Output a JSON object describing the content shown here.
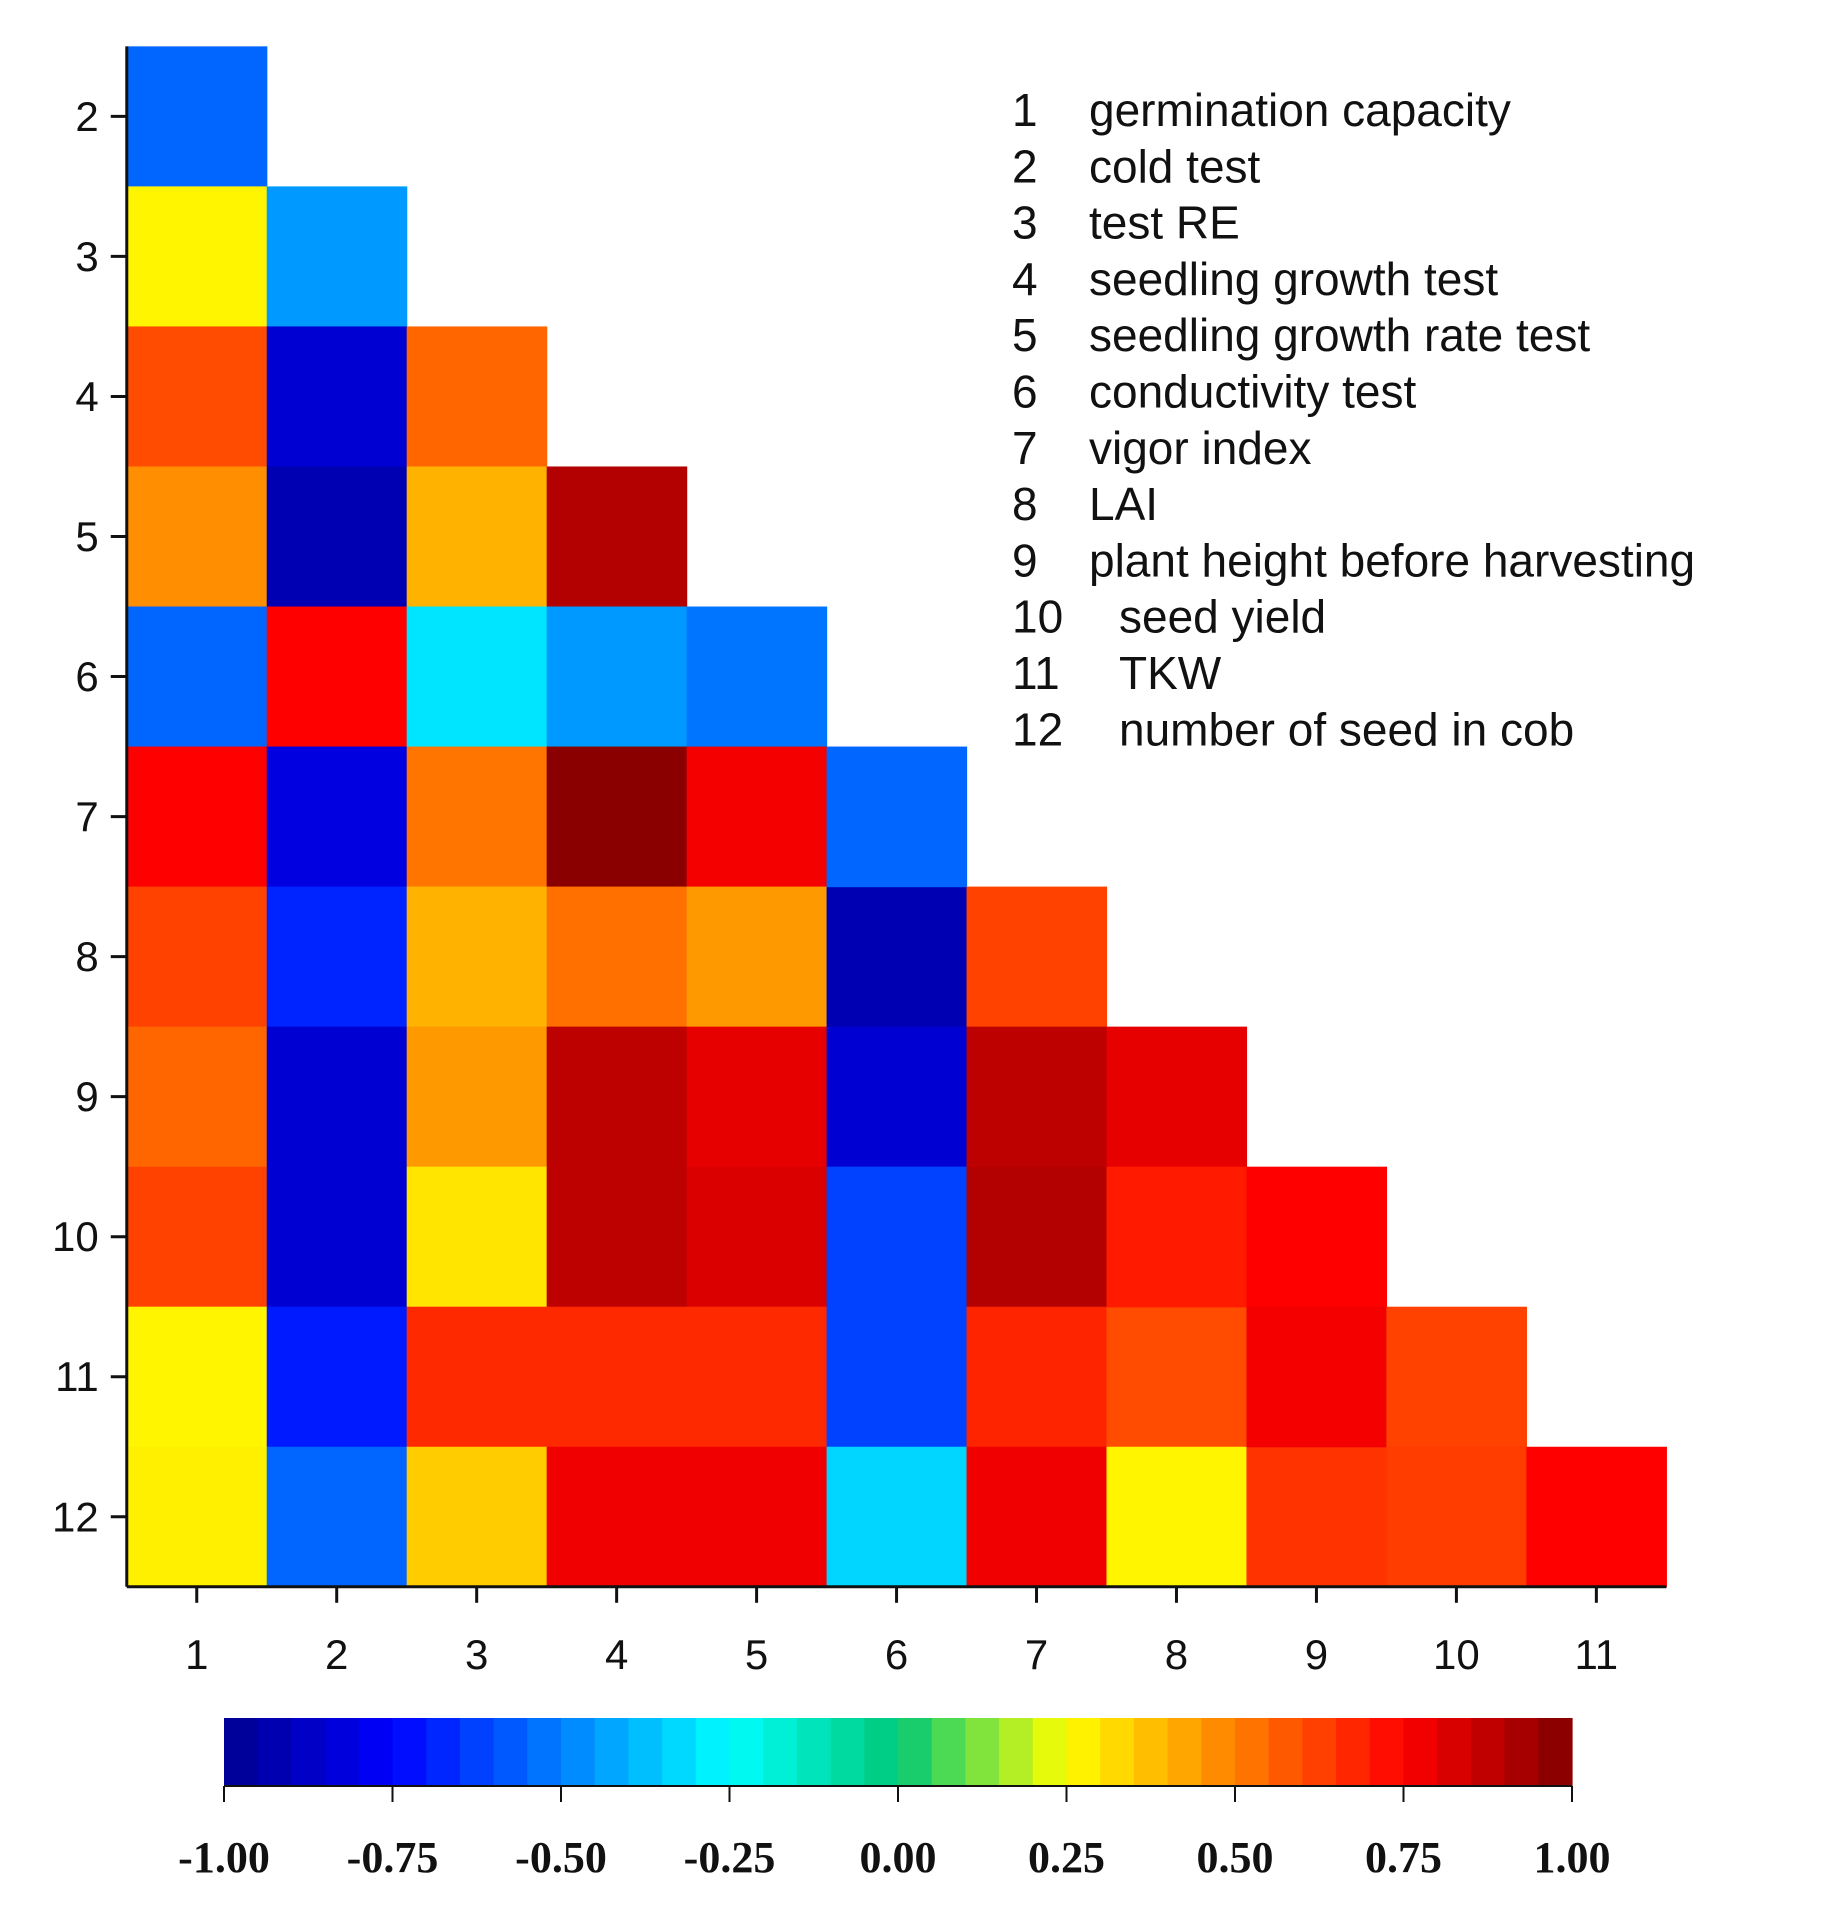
{
  "chart_data": {
    "type": "heatmap",
    "title": "",
    "xlabel": "",
    "ylabel": "",
    "x_categories": [
      "1",
      "2",
      "3",
      "4",
      "5",
      "6",
      "7",
      "8",
      "9",
      "10",
      "11"
    ],
    "y_categories": [
      "2",
      "3",
      "4",
      "5",
      "6",
      "7",
      "8",
      "9",
      "10",
      "11",
      "12"
    ],
    "value_range": [
      -1.0,
      1.0
    ],
    "rows": [
      {
        "y": "2",
        "values": [
          -0.55
        ]
      },
      {
        "y": "3",
        "values": [
          0.27,
          -0.45
        ]
      },
      {
        "y": "4",
        "values": [
          0.6,
          -0.85,
          0.55
        ]
      },
      {
        "y": "5",
        "values": [
          0.47,
          -0.92,
          0.4,
          0.9
        ]
      },
      {
        "y": "6",
        "values": [
          -0.55,
          0.75,
          -0.3,
          -0.45,
          -0.52
        ]
      },
      {
        "y": "7",
        "values": [
          0.75,
          -0.82,
          0.52,
          0.98,
          0.77
        ]
      },
      {
        "y": "8",
        "values": [
          0.62,
          -0.68,
          0.4,
          0.53,
          0.45,
          -0.92
        ]
      },
      {
        "y": "9",
        "values": [
          0.55,
          -0.85,
          0.45,
          0.88,
          0.8,
          -0.85
        ]
      },
      {
        "y": "10",
        "values": [
          0.62,
          -0.85,
          0.3,
          0.88,
          0.82,
          -0.62,
          0.9
        ]
      },
      {
        "y": "11",
        "values": [
          0.27,
          -0.7,
          0.67,
          0.67,
          0.67,
          -0.62,
          0.68,
          0.6
        ]
      },
      {
        "y": "12",
        "values": [
          0.28,
          -0.55,
          0.35,
          0.78,
          0.78,
          -0.33,
          0.78,
          0.27,
          0.65
        ]
      }
    ],
    "extra_cells": [
      {
        "row": "7",
        "col": "6",
        "value": -0.55
      },
      {
        "row": "8",
        "col": "7",
        "value": 0.62
      },
      {
        "row": "9",
        "col": "7",
        "value": 0.88
      },
      {
        "row": "9",
        "col": "8",
        "value": 0.8
      },
      {
        "row": "10",
        "col": "8",
        "value": 0.7
      },
      {
        "row": "10",
        "col": "9",
        "value": 0.75
      },
      {
        "row": "11",
        "col": "9",
        "value": 0.77
      },
      {
        "row": "11",
        "col": "10",
        "value": 0.62
      },
      {
        "row": "12",
        "col": "10",
        "value": 0.63
      },
      {
        "row": "12",
        "col": "11",
        "value": 0.75
      }
    ],
    "legend_entries": [
      {
        "num": "1",
        "label": "germination capacity"
      },
      {
        "num": "2",
        "label": "cold test"
      },
      {
        "num": "3",
        "label": "test RE"
      },
      {
        "num": "4",
        "label": "seedling growth test"
      },
      {
        "num": "5",
        "label": "seedling growth rate test"
      },
      {
        "num": "6",
        "label": "conductivity test"
      },
      {
        "num": "7",
        "label": "vigor index"
      },
      {
        "num": "8",
        "label": "LAI"
      },
      {
        "num": "9",
        "label": "plant height before harvesting"
      },
      {
        "num": "10",
        "label": "seed yield"
      },
      {
        "num": "11",
        "label": "TKW"
      },
      {
        "num": "12",
        "label": "number of seed in cob"
      }
    ],
    "legend_placement": "top-right",
    "colorbar": {
      "placement": "bottom",
      "ticks": [
        "-1.00",
        "-0.75",
        "-0.50",
        "-0.25",
        "0.00",
        "0.25",
        "0.50",
        "0.75",
        "1.00"
      ]
    }
  }
}
